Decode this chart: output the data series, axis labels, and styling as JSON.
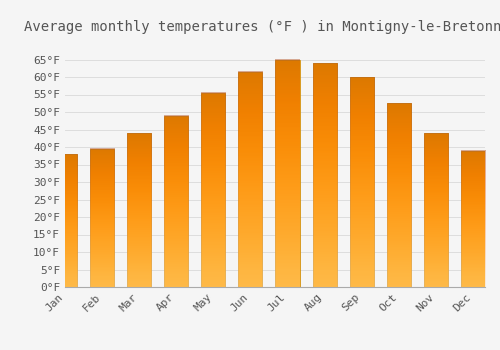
{
  "title": "Average monthly temperatures (°F ) in Montigny-le-Bretonneux",
  "months": [
    "Jan",
    "Feb",
    "Mar",
    "Apr",
    "May",
    "Jun",
    "Jul",
    "Aug",
    "Sep",
    "Oct",
    "Nov",
    "Dec"
  ],
  "values": [
    38,
    39.5,
    44,
    49,
    55.5,
    61.5,
    65,
    64,
    60,
    52.5,
    44,
    39
  ],
  "bar_color": "#FFA500",
  "bar_edge_color": "#CC8800",
  "background_color": "#F5F5F5",
  "grid_color": "#DDDDDD",
  "text_color": "#555555",
  "ylim": [
    0,
    70
  ],
  "yticks": [
    0,
    5,
    10,
    15,
    20,
    25,
    30,
    35,
    40,
    45,
    50,
    55,
    60,
    65
  ],
  "ylabel_suffix": "°F",
  "title_fontsize": 10,
  "tick_fontsize": 8,
  "font_family": "monospace",
  "figwidth": 5.0,
  "figheight": 3.5,
  "dpi": 100
}
